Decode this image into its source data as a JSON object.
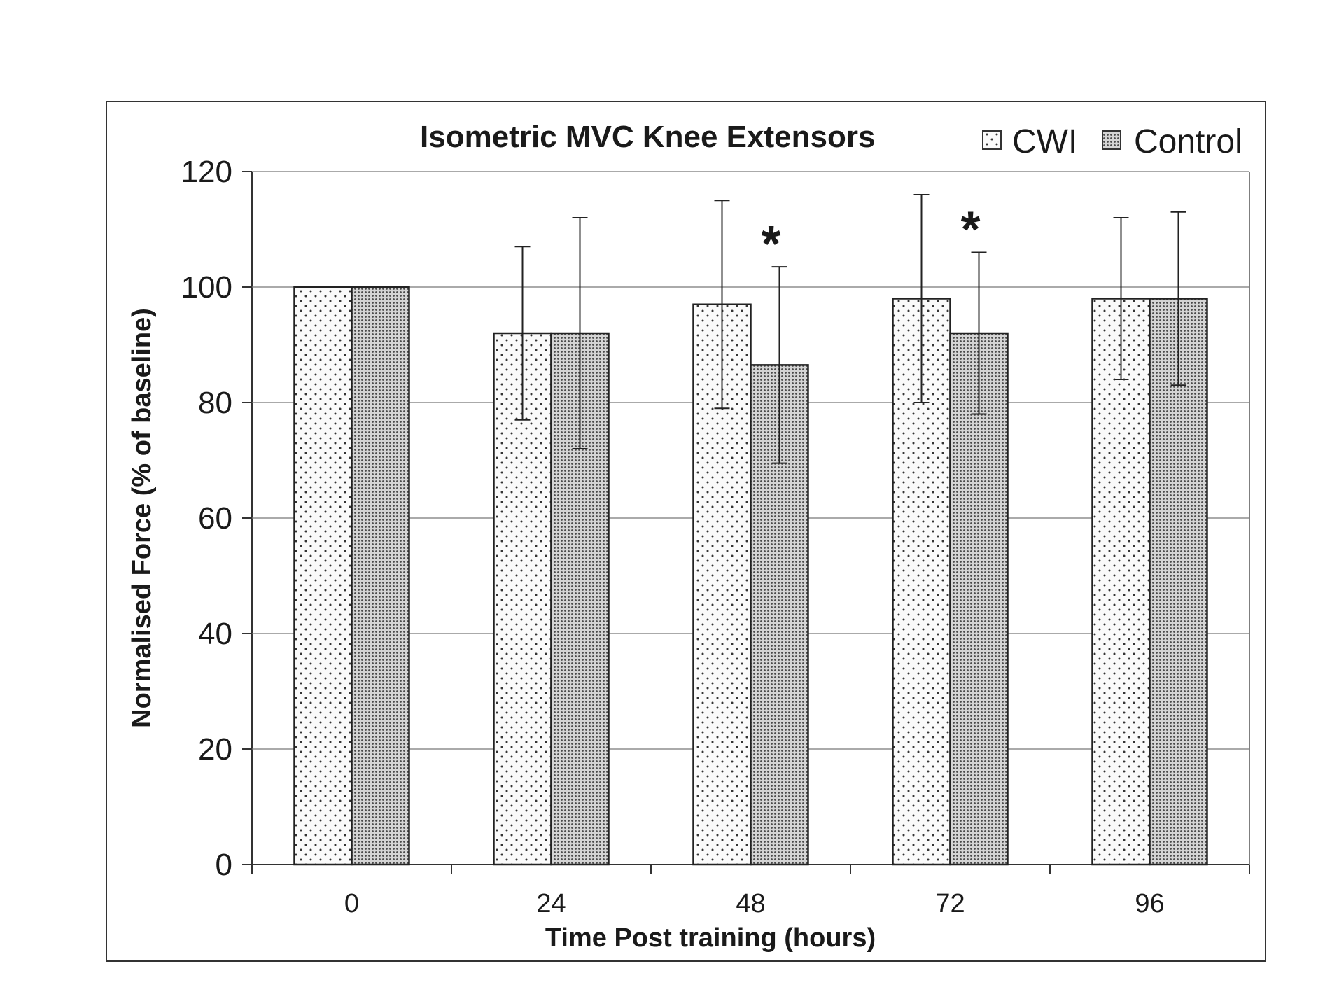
{
  "chart_data": {
    "type": "bar",
    "title": "Isometric MVC Knee Extensors",
    "xlabel": "Time Post training (hours)",
    "ylabel": "Normalised Force (% of baseline)",
    "categories": [
      "0",
      "24",
      "48",
      "72",
      "96"
    ],
    "ylim": [
      0,
      120
    ],
    "yticks": [
      "0",
      "20",
      "40",
      "60",
      "80",
      "100",
      "120"
    ],
    "grid": true,
    "legend_position": "top-right",
    "series": [
      {
        "name": "CWI",
        "values": [
          100,
          92,
          97,
          98,
          98
        ],
        "error": [
          null,
          15,
          18,
          18,
          14
        ],
        "pattern": "sparse-dots"
      },
      {
        "name": "Control",
        "values": [
          100,
          92,
          86.5,
          92,
          98
        ],
        "error": [
          null,
          20,
          17,
          14,
          15
        ],
        "pattern": "dense-dots"
      }
    ],
    "annotations": [
      {
        "text": "*",
        "category": "48"
      },
      {
        "text": "*",
        "category": "72"
      }
    ]
  }
}
